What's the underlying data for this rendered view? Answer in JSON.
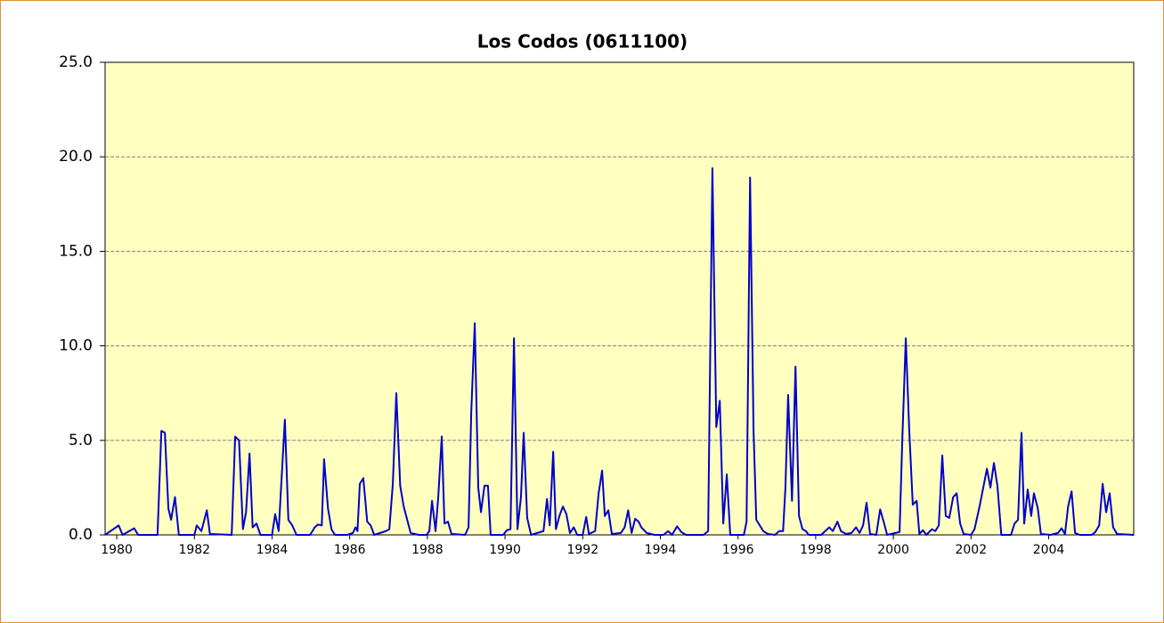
{
  "chart_data": {
    "type": "line",
    "title": "Los Codos (0611100)",
    "series": [
      {
        "color": "#0000cc",
        "x": [
          1979.7,
          1980.05,
          1980.15,
          1980.45,
          1980.55,
          1981.05,
          1981.15,
          1981.24,
          1981.33,
          1981.4,
          1981.5,
          1981.6,
          1982.0,
          1982.06,
          1982.18,
          1982.32,
          1982.4,
          1982.96,
          1983.05,
          1983.15,
          1983.25,
          1983.33,
          1983.42,
          1983.5,
          1983.6,
          1983.7,
          1984.0,
          1984.08,
          1984.17,
          1984.33,
          1984.42,
          1984.52,
          1984.63,
          1984.98,
          1985.1,
          1985.18,
          1985.28,
          1985.34,
          1985.44,
          1985.53,
          1985.62,
          1985.94,
          1986.08,
          1986.15,
          1986.2,
          1986.26,
          1986.35,
          1986.45,
          1986.54,
          1986.63,
          1986.93,
          1987.02,
          1987.11,
          1987.2,
          1987.3,
          1987.39,
          1987.48,
          1987.57,
          1987.78,
          1987.98,
          1988.05,
          1988.12,
          1988.21,
          1988.28,
          1988.37,
          1988.44,
          1988.53,
          1988.62,
          1988.97,
          1989.06,
          1989.13,
          1989.22,
          1989.31,
          1989.38,
          1989.47,
          1989.56,
          1989.63,
          1989.95,
          1990.05,
          1990.14,
          1990.23,
          1990.32,
          1990.41,
          1990.48,
          1990.57,
          1990.67,
          1990.99,
          1991.08,
          1991.15,
          1991.24,
          1991.31,
          1991.4,
          1991.49,
          1991.58,
          1991.67,
          1991.77,
          1991.86,
          1992.0,
          1992.09,
          1992.16,
          1992.32,
          1992.41,
          1992.5,
          1992.57,
          1992.66,
          1992.75,
          1992.98,
          1993.08,
          1993.17,
          1993.26,
          1993.35,
          1993.44,
          1993.51,
          1993.65,
          1993.85,
          1994.08,
          1994.2,
          1994.3,
          1994.43,
          1994.54,
          1994.66,
          1995.11,
          1995.23,
          1995.34,
          1995.44,
          1995.53,
          1995.62,
          1995.71,
          1995.8,
          1996.15,
          1996.22,
          1996.31,
          1996.4,
          1996.47,
          1996.56,
          1996.65,
          1996.77,
          1996.95,
          1997.06,
          1997.16,
          1997.22,
          1997.29,
          1997.39,
          1997.48,
          1997.57,
          1997.66,
          1997.75,
          1997.82,
          1998.14,
          1998.35,
          1998.44,
          1998.56,
          1998.65,
          1998.78,
          1998.92,
          1999.04,
          1999.13,
          1999.22,
          1999.31,
          1999.4,
          1999.56,
          1999.66,
          1999.75,
          1999.84,
          2000.05,
          2000.16,
          2000.23,
          2000.32,
          2000.41,
          2000.5,
          2000.6,
          2000.67,
          2000.76,
          2000.85,
          2000.99,
          2001.08,
          2001.17,
          2001.26,
          2001.35,
          2001.44,
          2001.54,
          2001.63,
          2001.72,
          2001.81,
          2002.0,
          2002.09,
          2002.22,
          2002.41,
          2002.5,
          2002.59,
          2002.68,
          2002.78,
          2003.03,
          2003.12,
          2003.21,
          2003.3,
          2003.37,
          2003.46,
          2003.55,
          2003.62,
          2003.72,
          2003.8,
          2004.05,
          2004.24,
          2004.33,
          2004.42,
          2004.5,
          2004.59,
          2004.68,
          2004.8,
          2005.11,
          2005.2,
          2005.3,
          2005.39,
          2005.48,
          2005.57,
          2005.66,
          2005.76,
          2006.19
        ],
        "values": [
          0,
          0.5,
          0,
          0.35,
          0,
          0,
          5.5,
          5.4,
          1.4,
          0.8,
          2.0,
          0,
          0,
          0.5,
          0.2,
          1.3,
          0.05,
          0,
          5.2,
          5.0,
          0.3,
          1.2,
          4.3,
          0.4,
          0.6,
          0,
          0,
          1.1,
          0.2,
          6.1,
          0.8,
          0.5,
          0,
          0,
          0.4,
          0.55,
          0.5,
          4.0,
          1.4,
          0.3,
          0,
          0,
          0.1,
          0.4,
          0.2,
          2.7,
          3.0,
          0.7,
          0.5,
          0,
          0.2,
          0.3,
          2.7,
          7.5,
          2.6,
          1.5,
          0.8,
          0.1,
          0,
          0,
          0.2,
          1.8,
          0.2,
          2.0,
          5.2,
          0.6,
          0.7,
          0.05,
          0,
          0.4,
          6.5,
          11.2,
          2.5,
          1.2,
          2.6,
          2.6,
          0,
          0,
          0.25,
          0.3,
          10.4,
          0.3,
          2.0,
          5.4,
          0.9,
          0,
          0.2,
          1.9,
          0.5,
          4.4,
          0.3,
          1.0,
          1.5,
          1.1,
          0.1,
          0.4,
          0,
          0,
          0.95,
          0.05,
          0.2,
          2.2,
          3.4,
          1.0,
          1.3,
          0.05,
          0.1,
          0.4,
          1.3,
          0.1,
          0.85,
          0.7,
          0.4,
          0.1,
          0,
          0,
          0.2,
          0,
          0.45,
          0.15,
          0,
          0,
          0.2,
          19.4,
          5.7,
          7.1,
          0.6,
          3.2,
          0,
          0,
          0.7,
          18.9,
          5.5,
          0.8,
          0.5,
          0.2,
          0.05,
          0,
          0.2,
          0.2,
          2.5,
          7.4,
          1.8,
          8.9,
          1.0,
          0.3,
          0.2,
          0,
          0,
          0.4,
          0.2,
          0.7,
          0.2,
          0.05,
          0.1,
          0.4,
          0.1,
          0.5,
          1.7,
          0.05,
          0,
          1.35,
          0.7,
          0,
          0.1,
          0.15,
          5.0,
          10.4,
          5.5,
          1.6,
          1.8,
          0.05,
          0.25,
          0,
          0.3,
          0.2,
          0.5,
          4.2,
          1.0,
          0.9,
          2.0,
          2.2,
          0.6,
          0.05,
          0,
          0.3,
          1.5,
          3.5,
          2.5,
          3.8,
          2.6,
          0,
          0,
          0.6,
          0.8,
          5.4,
          0.6,
          2.4,
          1.0,
          2.2,
          1.4,
          0.05,
          0,
          0.1,
          0.35,
          0.05,
          1.5,
          2.3,
          0.1,
          0,
          0,
          0.15,
          0.5,
          2.7,
          1.2,
          2.2,
          0.4,
          0.05,
          0
        ]
      }
    ],
    "xlim": [
      1979.7,
      2006.19
    ],
    "xticks": [
      1980,
      1982,
      1984,
      1986,
      1988,
      1990,
      1992,
      1994,
      1996,
      1998,
      2000,
      2002,
      2004
    ],
    "ylim": [
      0,
      25
    ],
    "yticks": [
      {
        "value": 0,
        "label": "0.0"
      },
      {
        "value": 5,
        "label": "5.0"
      },
      {
        "value": 10,
        "label": "10.0"
      },
      {
        "value": 15,
        "label": "15.0"
      },
      {
        "value": 20,
        "label": "20.0"
      },
      {
        "value": 25,
        "label": "25.0"
      }
    ],
    "grid": true,
    "plot_background": "#ffffc0"
  }
}
